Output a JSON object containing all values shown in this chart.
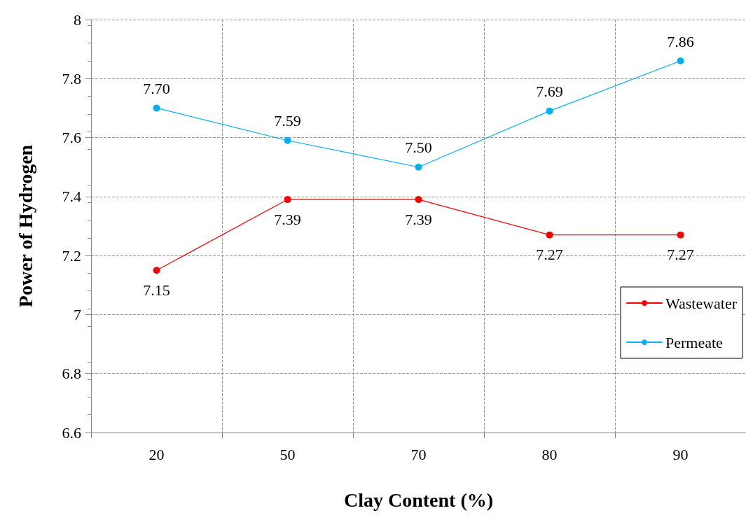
{
  "chart_data": {
    "type": "line",
    "xlabel": "Clay Content (%)",
    "ylabel": "Power of Hydrogen",
    "categories": [
      "20",
      "50",
      "70",
      "80",
      "90"
    ],
    "series": [
      {
        "name": "Wastewater",
        "color": "#ff0000",
        "values": [
          7.15,
          7.39,
          7.39,
          7.27,
          7.27
        ],
        "value_labels": [
          "7.15",
          "7.39",
          "7.39",
          "7.27",
          "7.27"
        ]
      },
      {
        "name": "Permeate",
        "color": "#00b0f0",
        "values": [
          7.7,
          7.59,
          7.5,
          7.69,
          7.86
        ],
        "value_labels": [
          "7.70",
          "7.59",
          "7.50",
          "7.69",
          "7.86"
        ]
      }
    ],
    "ylim": [
      6.6,
      8
    ],
    "yticks": [
      6.6,
      6.8,
      7,
      7.2,
      7.4,
      7.6,
      7.8,
      8
    ],
    "grid": true,
    "legend": "right",
    "marker": "circle",
    "line_style": "solid"
  }
}
